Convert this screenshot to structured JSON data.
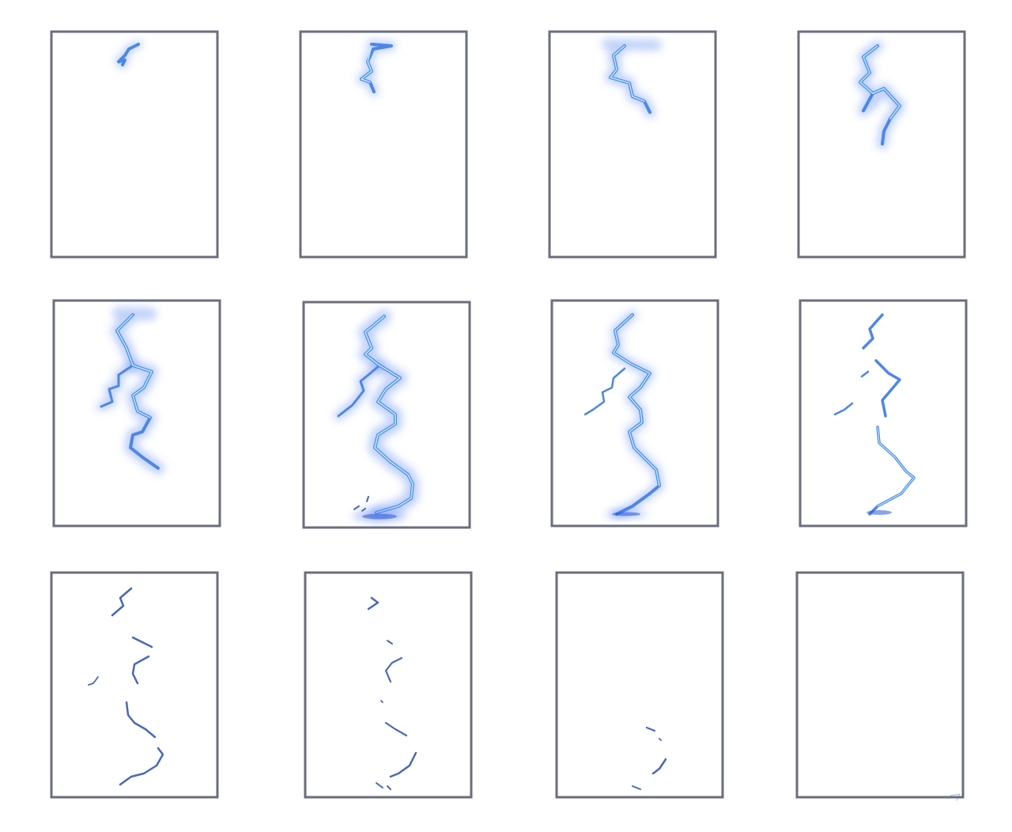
{
  "sheet": {
    "frame_count": 12,
    "rows": 3,
    "columns": 4
  },
  "colors": {
    "frame_border": "#6a6e7c",
    "bolt_glow": "#3f73f0",
    "bolt_main": "#4d86e8",
    "bolt_core": "#b9ecff",
    "fading_segments": "#4a68b8"
  },
  "frames": [
    {
      "index": 1,
      "stage": "strike-start"
    },
    {
      "index": 2,
      "stage": "descending"
    },
    {
      "index": 3,
      "stage": "descending"
    },
    {
      "index": 4,
      "stage": "branching"
    },
    {
      "index": 5,
      "stage": "branching"
    },
    {
      "index": 6,
      "stage": "ground-impact"
    },
    {
      "index": 7,
      "stage": "full-bolt"
    },
    {
      "index": 8,
      "stage": "breaking-up"
    },
    {
      "index": 9,
      "stage": "fragments"
    },
    {
      "index": 10,
      "stage": "fragments"
    },
    {
      "index": 11,
      "stage": "fading"
    },
    {
      "index": 12,
      "stage": "empty"
    }
  ]
}
